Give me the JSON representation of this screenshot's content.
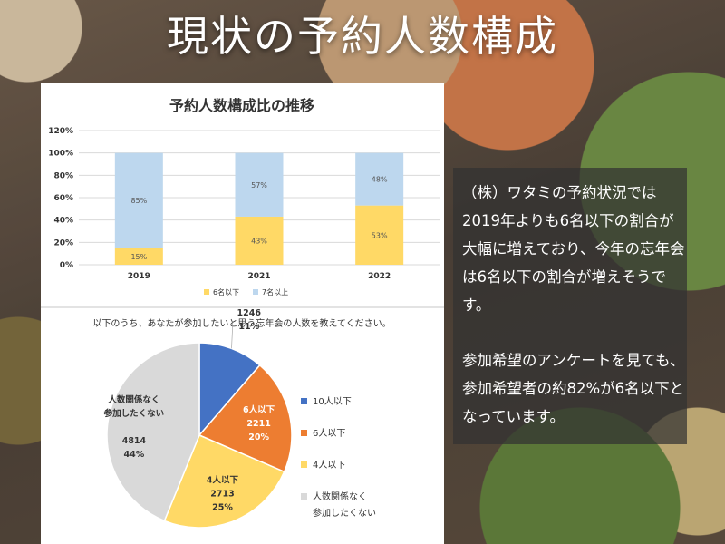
{
  "page": {
    "title": "現状の予約人数構成",
    "note1": "（株）ワタミの予約状況では2019年よりも6名以下の割合が大幅に増えており、今年の忘年会は6名以下の割合が増えそうです。",
    "note2": "参加希望のアンケートを見ても、参加希望者の約82%が6名以下となっています。"
  },
  "chart_data": [
    {
      "type": "bar",
      "stacked": true,
      "title": "予約人数構成比の推移",
      "categories": [
        "2019",
        "2021",
        "2022"
      ],
      "series": [
        {
          "name": "6名以下",
          "values": [
            15,
            43,
            53
          ],
          "labels": [
            "15%",
            "43%",
            "53%"
          ],
          "color": "#ffd966"
        },
        {
          "name": "7名以上",
          "values": [
            85,
            57,
            48
          ],
          "labels": [
            "85%",
            "57%",
            "48%"
          ],
          "color": "#bdd7ee"
        }
      ],
      "ylim": [
        0,
        120
      ],
      "yticks": [
        0,
        20,
        40,
        60,
        80,
        100,
        120
      ],
      "ytick_labels": [
        "0%",
        "20%",
        "40%",
        "60%",
        "80%",
        "100%",
        "120%"
      ],
      "grid": true,
      "legend": "bottom"
    },
    {
      "type": "pie",
      "title": "以下のうち、あなたが参加したいと思う忘年会の人数を教えてください。",
      "slices": [
        {
          "name": "10人以下",
          "value": 1246,
          "pct": "11%",
          "color": "#4472c4"
        },
        {
          "name": "6人以下",
          "value": 2211,
          "pct": "20%",
          "color": "#ed7d31"
        },
        {
          "name": "4人以下",
          "value": 2713,
          "pct": "25%",
          "color": "#ffd966"
        },
        {
          "name": "人数関係なく参加したくない",
          "value": 4814,
          "pct": "44%",
          "color": "#d9d9d9",
          "label_lines": [
            "人数関係なく",
            "参加したくない"
          ]
        }
      ],
      "legend": [
        {
          "lines": [
            "10人以下"
          ]
        },
        {
          "lines": [
            "6人以下"
          ]
        },
        {
          "lines": [
            "4人以下"
          ]
        },
        {
          "lines": [
            "人数関係なく",
            "参加したくない"
          ]
        }
      ],
      "legend_placement": "right"
    }
  ]
}
